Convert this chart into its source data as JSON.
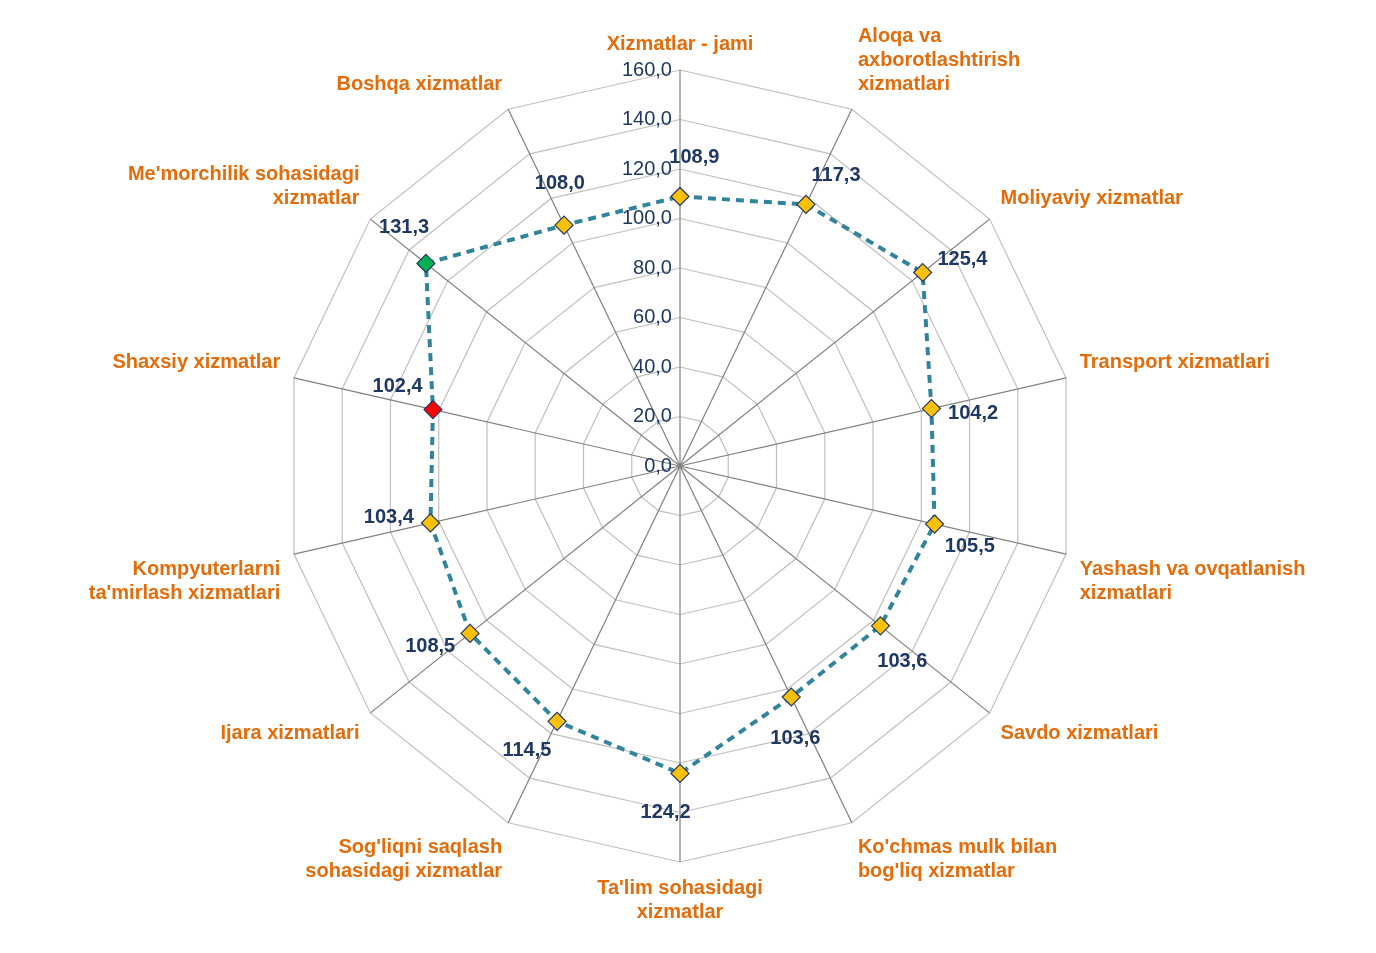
{
  "chart_data": {
    "type": "radar",
    "categories": [
      "Xizmatlar - jami",
      "Aloqa va axborotlashtirish xizmatlari",
      "Moliyaviy xizmatlar",
      "Transport xizmatlari",
      "Yashash va ovqatlanish xizmatlari",
      "Savdo xizmatlari",
      "Ko'chmas mulk bilan bog'liq xizmatlar",
      "Ta'lim sohasidagi xizmatlar",
      "Sog'liqni saqlash sohasidagi xizmatlar",
      "Ijara xizmatlari",
      "Kompyuterlarni ta'mirlash xizmatlari",
      "Shaxsiy xizmatlar",
      "Me'morchilik sohasidagi xizmatlar",
      "Boshqa xizmatlar"
    ],
    "series": [
      {
        "color": "#31849b",
        "colors": [
          "#ffc000",
          "#ffc000",
          "#ffc000",
          "#ffc000",
          "#ffc000",
          "#ffc000",
          "#ffc000",
          "#ffc000",
          "#ffc000",
          "#ffc000",
          "#ffc000",
          "#ff0000",
          "#00b050",
          "#ffc000"
        ],
        "values": [
          108.9,
          117.3,
          125.4,
          104.2,
          105.5,
          103.6,
          103.6,
          124.2,
          114.5,
          108.5,
          103.4,
          102.4,
          131.3,
          108.0
        ],
        "value_labels": [
          "108,9",
          "117,3",
          "125,4",
          "104,2",
          "105,5",
          "103,6",
          "103,6",
          "124,2",
          "114,5",
          "108,5",
          "103,4",
          "102,4",
          "131,3",
          "108,0"
        ]
      }
    ],
    "ylim": [
      0,
      160
    ],
    "yticks": [
      {
        "value": 0,
        "label": "0,0"
      },
      {
        "value": 20,
        "label": "20,0"
      },
      {
        "value": 40,
        "label": "40,0"
      },
      {
        "value": 60,
        "label": "60,0"
      },
      {
        "value": 80,
        "label": "80,0"
      },
      {
        "value": 100,
        "label": "100,0"
      },
      {
        "value": 120,
        "label": "120,0"
      },
      {
        "value": 140,
        "label": "140,0"
      },
      {
        "value": 160,
        "label": "160,0"
      }
    ],
    "grid": true,
    "legend": false,
    "marker": "diamond",
    "line_style": "dashed"
  }
}
